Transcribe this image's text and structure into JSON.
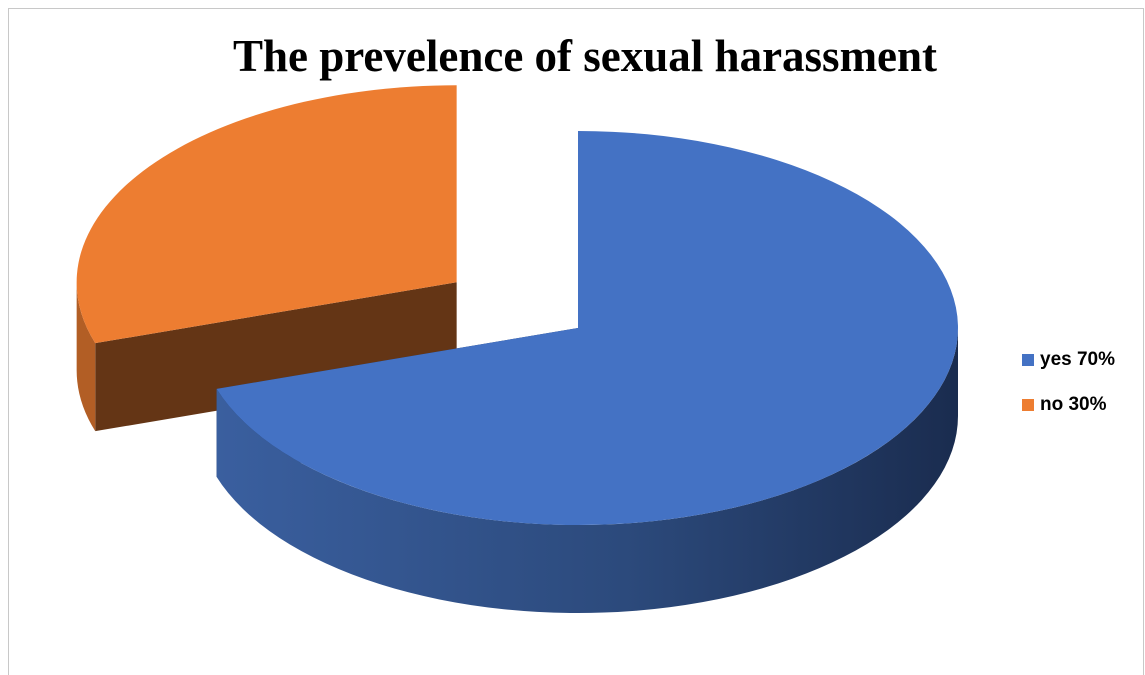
{
  "chart_data": {
    "type": "pie",
    "title": "The prevelence of sexual harassment",
    "style": "3d-exploded",
    "categories": [
      "yes 70%",
      "no 30%"
    ],
    "values": [
      70,
      30
    ],
    "colors": [
      "#4472C4",
      "#ED7D31"
    ],
    "legend": "right"
  }
}
